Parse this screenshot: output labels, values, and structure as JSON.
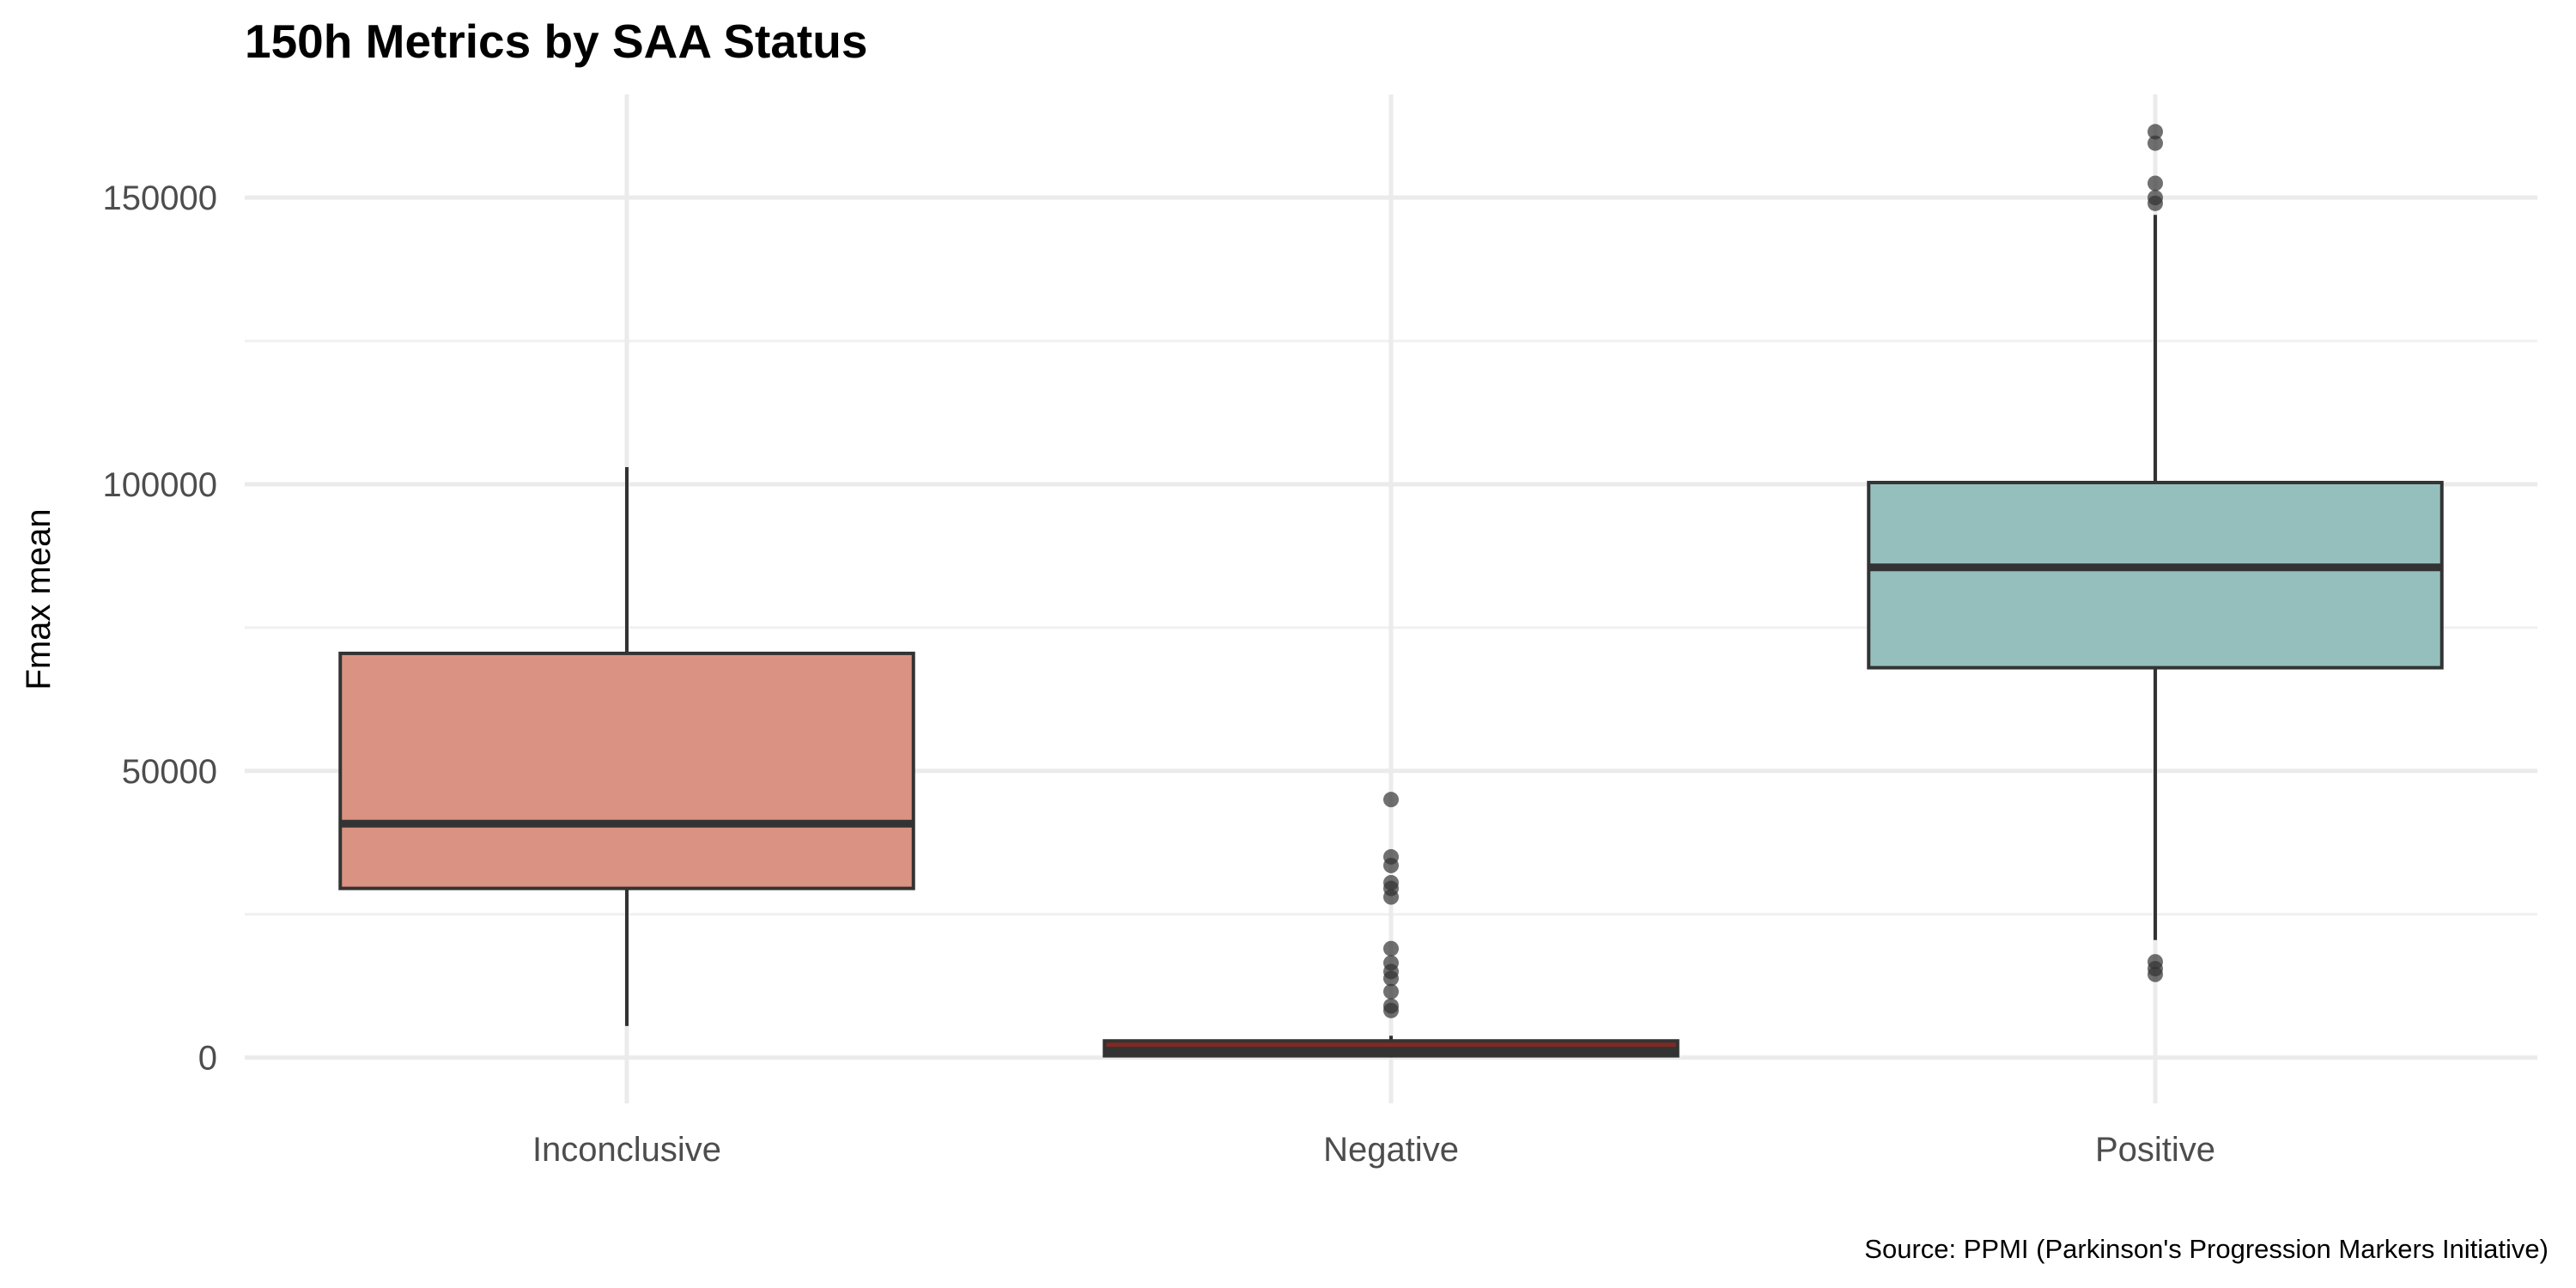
{
  "chart_data": {
    "type": "box",
    "title": "150h Metrics by SAA Status",
    "xlabel": "",
    "ylabel": "Fmax mean",
    "caption": "Source: PPMI (Parkinson's Progression Markers Initiative)",
    "ylim": [
      -8000,
      168000
    ],
    "y_ticks": [
      0,
      50000,
      100000,
      150000
    ],
    "y_tick_labels": [
      "0",
      "50000",
      "100000",
      "150000"
    ],
    "grid": true,
    "legend": "none",
    "categories": [
      "Inconclusive",
      "Negative",
      "Positive"
    ],
    "boxes": [
      {
        "category": "Inconclusive",
        "color": "#da9282",
        "min": 5500,
        "q1": 29500,
        "median": 40800,
        "q3": 70500,
        "max": 103000,
        "outliers": []
      },
      {
        "category": "Negative",
        "color": "#7e2a22",
        "min": 0,
        "q1": 300,
        "median": 1200,
        "q3": 2900,
        "max": 3800,
        "outliers": [
          8200,
          9000,
          11500,
          13800,
          15000,
          16500,
          19000,
          28000,
          29500,
          30500,
          33500,
          35000,
          45000
        ]
      },
      {
        "category": "Positive",
        "color": "#95bfbd",
        "min": 20500,
        "q1": 68000,
        "median": 85500,
        "q3": 100300,
        "max": 147000,
        "outliers": [
          14500,
          15500,
          16700,
          149000,
          150000,
          152500,
          159500,
          161500
        ]
      }
    ]
  }
}
